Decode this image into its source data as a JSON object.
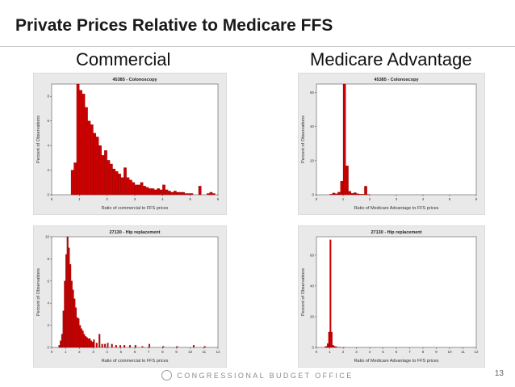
{
  "slide": {
    "title": "Private Prices Relative to Medicare FFS",
    "footer": "CONGRESSIONAL BUDGET OFFICE",
    "page_number": "13",
    "col_left": "Commercial",
    "col_right": "Medicare Advantage"
  },
  "colors": {
    "bar": "#cc0000",
    "bar_edge": "#6a0000",
    "panel_bg": "#e9e9e9",
    "plot_bg": "#ffffff"
  },
  "chart_data": [
    {
      "type": "bar",
      "title": "45385 - Colonoscopy",
      "xlabel": "Ratio of commercial to FFS prices",
      "ylabel": "Percent of Observations",
      "xlim": [
        0,
        6
      ],
      "ylim": [
        0,
        9
      ],
      "xticks": [
        "0",
        "1",
        "2",
        "3",
        "4",
        "5",
        "6"
      ],
      "yticks": [
        "0",
        "2",
        "4",
        "6",
        "8"
      ],
      "bin_width": 0.1,
      "bins_start": [
        0.7,
        0.8,
        0.9,
        1.0,
        1.1,
        1.2,
        1.3,
        1.4,
        1.5,
        1.6,
        1.7,
        1.8,
        1.9,
        2.0,
        2.1,
        2.2,
        2.3,
        2.4,
        2.5,
        2.6,
        2.7,
        2.8,
        2.9,
        3.0,
        3.1,
        3.2,
        3.3,
        3.4,
        3.5,
        3.6,
        3.7,
        3.8,
        3.9,
        4.0,
        4.1,
        4.2,
        4.3,
        4.4,
        4.5,
        4.6,
        4.7,
        4.8,
        4.9,
        5.0,
        5.3,
        5.6,
        5.7,
        5.8
      ],
      "values": [
        2.0,
        2.6,
        9.0,
        8.5,
        8.2,
        7.1,
        6.0,
        5.7,
        5.0,
        4.7,
        4.0,
        3.2,
        3.6,
        2.8,
        2.5,
        2.1,
        1.9,
        1.7,
        1.4,
        2.2,
        1.4,
        1.2,
        1.0,
        0.8,
        0.8,
        1.0,
        0.7,
        0.6,
        0.5,
        0.5,
        0.4,
        0.5,
        0.4,
        0.8,
        0.4,
        0.3,
        0.2,
        0.3,
        0.2,
        0.2,
        0.2,
        0.1,
        0.1,
        0.1,
        0.7,
        0.1,
        0.2,
        0.1
      ]
    },
    {
      "type": "bar",
      "title": "45385 - Colonoscopy",
      "xlabel": "Ratio of Medicare Advantage to FFS prices",
      "ylabel": "Percent of Observations",
      "xlim": [
        0,
        6
      ],
      "ylim": [
        0,
        65
      ],
      "xticks": [
        "0",
        "1",
        "2",
        "3",
        "4",
        "5",
        "6"
      ],
      "yticks": [
        "0",
        "20",
        "40",
        "60"
      ],
      "bin_width": 0.1,
      "bins_start": [
        0.5,
        0.6,
        0.7,
        0.8,
        0.9,
        1.0,
        1.1,
        1.2,
        1.3,
        1.4,
        1.5,
        1.6,
        1.7,
        1.8,
        1.9
      ],
      "values": [
        0.3,
        1.0,
        0.6,
        1.5,
        8.0,
        65.0,
        17.0,
        2.0,
        0.8,
        1.2,
        0.6,
        0.4,
        0.3,
        5.0,
        0.2
      ]
    },
    {
      "type": "bar",
      "title": "27130 - Hip replacement",
      "xlabel": "Ratio of commercial to FFS prices",
      "ylabel": "Percent of Observations",
      "xlim": [
        0,
        12
      ],
      "ylim": [
        0,
        10
      ],
      "xticks": [
        "0",
        "1",
        "2",
        "3",
        "4",
        "5",
        "6",
        "7",
        "8",
        "9",
        "10",
        "11",
        "12"
      ],
      "yticks": [
        "0",
        "2",
        "4",
        "6",
        "8",
        "10"
      ],
      "bin_width": 0.1,
      "bins_start": [
        0.5,
        0.6,
        0.7,
        0.8,
        0.9,
        1.0,
        1.1,
        1.2,
        1.3,
        1.4,
        1.5,
        1.6,
        1.7,
        1.8,
        1.9,
        2.0,
        2.1,
        2.2,
        2.3,
        2.4,
        2.5,
        2.6,
        2.7,
        2.8,
        2.9,
        3.0,
        3.2,
        3.4,
        3.6,
        3.8,
        4.0,
        4.3,
        4.6,
        4.9,
        5.2,
        5.6,
        6.0,
        6.5,
        7.0,
        8.0,
        9.0,
        10.2,
        11.0
      ],
      "values": [
        0.2,
        0.6,
        1.2,
        3.3,
        6.0,
        8.4,
        10.0,
        9.0,
        7.5,
        6.0,
        5.2,
        4.4,
        3.6,
        2.7,
        2.6,
        2.0,
        1.7,
        1.5,
        1.2,
        1.0,
        0.9,
        0.8,
        0.8,
        0.6,
        0.5,
        0.7,
        0.4,
        1.2,
        0.3,
        0.3,
        0.4,
        0.3,
        0.2,
        0.2,
        0.2,
        0.2,
        0.2,
        0.1,
        0.3,
        0.1,
        0.1,
        0.2,
        0.1
      ]
    },
    {
      "type": "bar",
      "title": "27130 - Hip replacement",
      "xlabel": "Ratio of Medicare Advantage to FFS prices",
      "ylabel": "Percent of Observations",
      "xlim": [
        0,
        12
      ],
      "ylim": [
        0,
        72
      ],
      "xticks": [
        "0",
        "1",
        "2",
        "3",
        "4",
        "5",
        "6",
        "7",
        "8",
        "9",
        "10",
        "11",
        "12"
      ],
      "yticks": [
        "0",
        "20",
        "40",
        "60"
      ],
      "bin_width": 0.1,
      "bins_start": [
        0.6,
        0.7,
        0.8,
        0.9,
        1.0,
        1.1,
        1.2,
        1.3,
        1.4,
        1.5,
        1.7,
        2.0
      ],
      "values": [
        0.3,
        0.8,
        2.5,
        10.0,
        70.0,
        10.0,
        1.5,
        0.8,
        0.5,
        0.3,
        0.2,
        0.1
      ]
    }
  ]
}
